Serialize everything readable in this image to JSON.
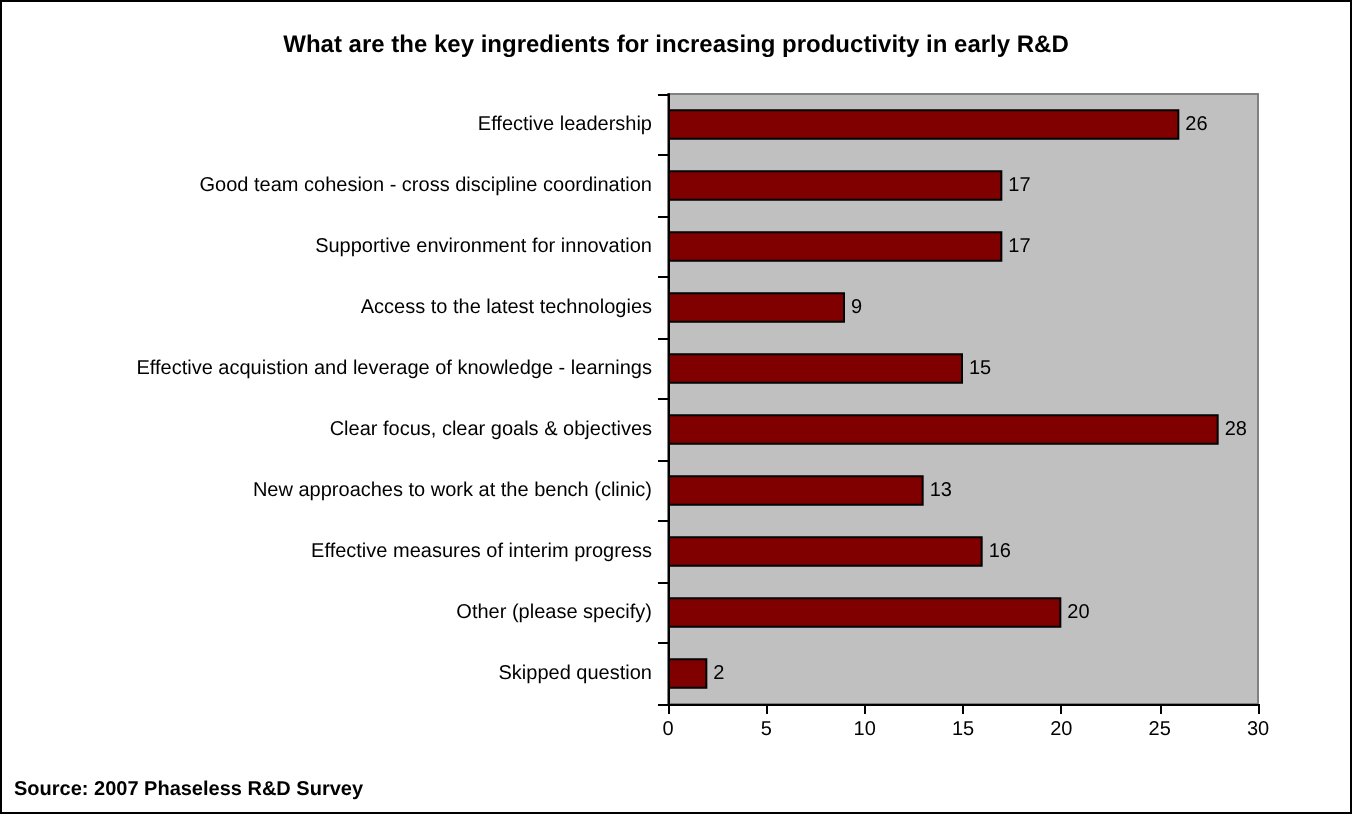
{
  "chart_data": {
    "type": "bar",
    "orientation": "horizontal",
    "title": "What are the key ingredients for increasing productivity in early R&D",
    "categories": [
      "Effective leadership",
      "Good team cohesion - cross discipline coordination",
      "Supportive environment for innovation",
      "Access to the latest technologies",
      "Effective acquistion and leverage of knowledge - learnings",
      "Clear focus, clear goals & objectives",
      "New approaches to work at the bench (clinic)",
      "Effective measures of interim progress",
      "Other (please specify)",
      "Skipped question"
    ],
    "values": [
      26,
      17,
      17,
      9,
      15,
      28,
      13,
      16,
      20,
      2
    ],
    "color": "#800000",
    "xlim": [
      0,
      30
    ],
    "xticks": [
      0,
      5,
      10,
      15,
      20,
      25,
      30
    ],
    "data_labels": true,
    "annotations": [
      "Source: 2007 Phaseless R&D Survey"
    ]
  }
}
